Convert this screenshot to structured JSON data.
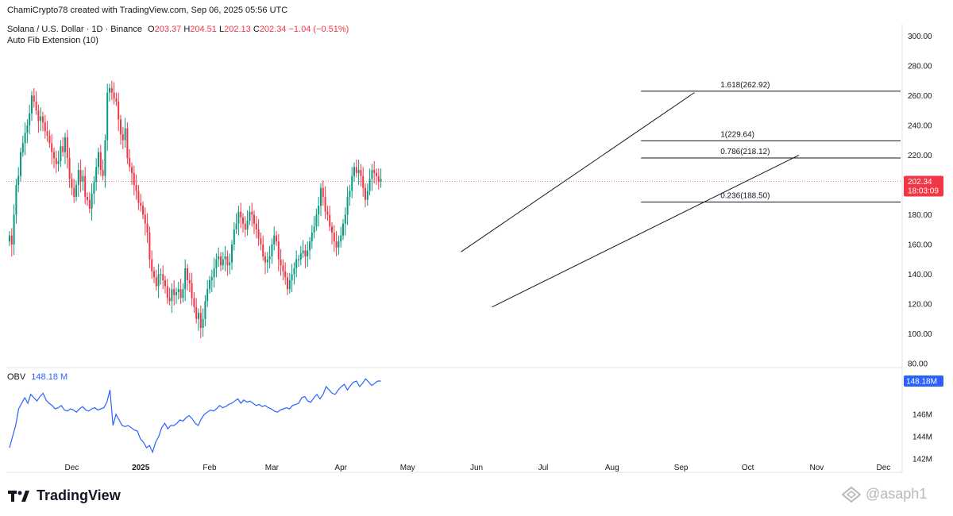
{
  "header": {
    "credit": "ChamiCrypto78 created with TradingView.com, Sep 06, 2025 05:56 UTC",
    "symbol": "Solana / U.S. Dollar · 1D · Binance",
    "o_label": "O",
    "o_value": "203.37",
    "h_label": "H",
    "h_value": "204.51",
    "l_label": "L",
    "l_value": "202.13",
    "c_label": "C",
    "c_value": "202.34",
    "change": "−1.04 (−0.51%)",
    "indicator": "Auto Fib Extension (10)"
  },
  "branding": {
    "logo": "TradingView",
    "watermark": "@asaph1",
    "logo_icon": "tradingview-logo",
    "watermark_icon": "diamond-logo"
  },
  "colors": {
    "up": "#089981",
    "down": "#f23645",
    "obv": "#2962ff",
    "price_tag": "#f23645",
    "obv_tag": "#2962ff"
  },
  "chart_data": {
    "type": "candlestick",
    "main": {
      "ylim": [
        80,
        305
      ],
      "ticks": [
        "300.00",
        "280.00",
        "260.00",
        "240.00",
        "220.00",
        "200.00",
        "180.00",
        "160.00",
        "140.00",
        "120.00",
        "100.00",
        "80.00"
      ],
      "last_price": "202.34",
      "countdown": "18:03:09",
      "fib_levels": [
        {
          "label": "1.618(262.92)",
          "value": 262.92,
          "x_start": "2025-08-14"
        },
        {
          "label": "1(229.64)",
          "value": 229.64,
          "x_start": "2025-08-14"
        },
        {
          "label": "0.786(218.12)",
          "value": 218.12,
          "x_start": "2025-08-14"
        },
        {
          "label": "0.236(188.50)",
          "value": 188.5,
          "x_start": "2025-08-14"
        }
      ],
      "trendlines": [
        {
          "from": [
            "2025-05-25",
            155
          ],
          "to": [
            "2025-09-07",
            262
          ]
        },
        {
          "from": [
            "2025-06-08",
            118
          ],
          "to": [
            "2025-10-24",
            220
          ]
        }
      ],
      "candles_close": [
        166,
        160,
        180,
        200,
        206,
        222,
        228,
        235,
        240,
        248,
        260,
        256,
        250,
        243,
        246,
        242,
        236,
        233,
        228,
        222,
        218,
        214,
        216,
        226,
        222,
        232,
        218,
        204,
        198,
        192,
        200,
        210,
        202,
        206,
        192,
        190,
        184,
        194,
        202,
        212,
        222,
        210,
        206,
        230,
        262,
        265,
        262,
        258,
        256,
        244,
        234,
        230,
        238,
        218,
        212,
        208,
        200,
        196,
        188,
        186,
        180,
        174,
        168,
        150,
        142,
        138,
        132,
        140,
        140,
        136,
        132,
        124,
        122,
        130,
        126,
        128,
        130,
        124,
        130,
        144,
        136,
        134,
        124,
        118,
        110,
        114,
        104,
        110,
        122,
        130,
        136,
        138,
        144,
        150,
        152,
        146,
        150,
        152,
        146,
        148,
        160,
        170,
        174,
        182,
        178,
        174,
        170,
        176,
        182,
        180,
        174,
        170,
        164,
        160,
        152,
        148,
        150,
        152,
        160,
        166,
        162,
        150,
        146,
        142,
        138,
        130,
        136,
        140,
        144,
        150,
        150,
        154,
        156,
        152,
        156,
        162,
        168,
        172,
        180,
        186,
        198,
        192,
        182,
        180,
        172,
        168,
        162,
        158,
        162,
        166,
        174,
        180,
        192,
        196,
        206,
        212,
        208,
        210,
        206,
        198,
        190,
        196,
        204,
        210,
        208,
        206,
        202,
        204
      ],
      "x_ticks": [
        {
          "label": "Dec",
          "date": "2024-12-01"
        },
        {
          "label": "2025",
          "date": "2025-01-01"
        },
        {
          "label": "Feb",
          "date": "2025-02-01"
        },
        {
          "label": "Mar",
          "date": "2025-03-01"
        },
        {
          "label": "Apr",
          "date": "2025-04-01"
        },
        {
          "label": "May",
          "date": "2025-05-01"
        },
        {
          "label": "Jun",
          "date": "2025-06-01"
        },
        {
          "label": "Jul",
          "date": "2025-07-01"
        },
        {
          "label": "Aug",
          "date": "2025-08-01"
        },
        {
          "label": "Sep",
          "date": "2025-09-01"
        },
        {
          "label": "Oct",
          "date": "2025-10-01"
        },
        {
          "label": "Nov",
          "date": "2025-11-01"
        },
        {
          "label": "Dec",
          "date": "2025-12-01"
        }
      ],
      "first_candle_date": "2024-11-03"
    },
    "obv": {
      "label": "OBV",
      "value_label": "148.18 M",
      "tag": "148.18M",
      "ylim": [
        142,
        149.5
      ],
      "ticks": [
        "146M",
        "144M",
        "142M"
      ],
      "tick_values": [
        146,
        144,
        142
      ],
      "values": [
        143,
        144,
        145,
        146.5,
        147,
        147.5,
        147,
        147.8,
        147.5,
        147.2,
        147.6,
        147.9,
        147.3,
        147,
        146.8,
        146.5,
        146.6,
        146.8,
        146.4,
        146.3,
        146.5,
        146.4,
        146.2,
        146.5,
        146.7,
        146.4,
        146.3,
        146.5,
        146.6,
        146.4,
        146.5,
        146.6,
        147.1,
        148.2,
        145,
        146,
        145.5,
        145,
        144.9,
        145,
        144.8,
        144.6,
        144.5,
        143.8,
        143.5,
        143,
        143.2,
        142.6,
        143.5,
        144,
        144.8,
        145.2,
        144.7,
        145,
        145,
        145.2,
        145.5,
        145.4,
        145.7,
        145.9,
        145.6,
        145.2,
        145,
        145.6,
        146,
        146.2,
        146.4,
        146.3,
        146.5,
        146.8,
        146.6,
        146.7,
        146.9,
        147,
        147.2,
        147.4,
        147,
        147.3,
        147.1,
        147.2,
        147,
        146.8,
        146.9,
        146.7,
        146.8,
        146.6,
        146.5,
        146.3,
        146.2,
        146.4,
        146.5,
        146.6,
        146.5,
        146.8,
        146.9,
        147,
        147.5,
        147.6,
        147.2,
        147.1,
        147.5,
        147.8,
        147.4,
        147.8,
        148.5,
        148.2,
        147.9,
        147.8,
        148.2,
        148.5,
        148.7,
        148.2,
        148.6,
        148.9,
        149,
        148.5,
        148.8,
        149.2,
        148.9,
        148.6,
        148.8,
        149,
        149
      ]
    }
  }
}
